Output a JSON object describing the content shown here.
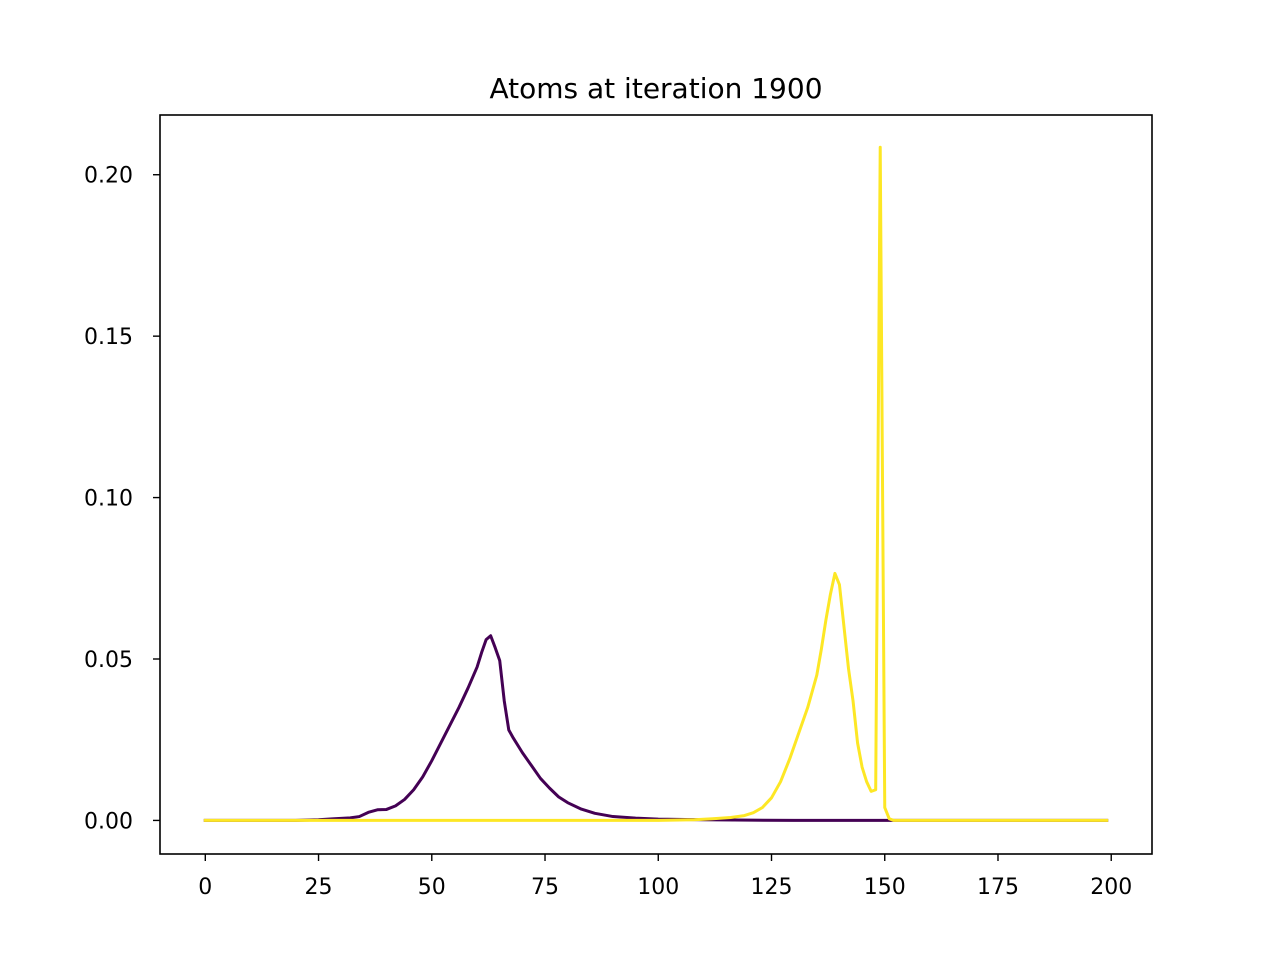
{
  "chart_data": {
    "type": "line",
    "title": "Atoms at iteration 1900",
    "xlabel": "",
    "ylabel": "",
    "xlim": [
      -10,
      209
    ],
    "ylim": [
      -0.0104,
      0.2185
    ],
    "xticks": [
      0,
      25,
      50,
      75,
      100,
      125,
      150,
      175,
      200
    ],
    "yticks": [
      0.0,
      0.05,
      0.1,
      0.15,
      0.2
    ],
    "ytick_labels": [
      "0.00",
      "0.05",
      "0.10",
      "0.15",
      "0.20"
    ],
    "grid": false,
    "legend": "none",
    "series": [
      {
        "color": "#440154",
        "points": [
          [
            0,
            0.0
          ],
          [
            20,
            0.0
          ],
          [
            25,
            0.0002
          ],
          [
            28,
            0.0005
          ],
          [
            32,
            0.0008
          ],
          [
            34,
            0.0012
          ],
          [
            36,
            0.0025
          ],
          [
            38,
            0.0033
          ],
          [
            40,
            0.0034
          ],
          [
            42,
            0.0045
          ],
          [
            44,
            0.0065
          ],
          [
            46,
            0.0095
          ],
          [
            48,
            0.0135
          ],
          [
            50,
            0.0185
          ],
          [
            52,
            0.024
          ],
          [
            54,
            0.0295
          ],
          [
            56,
            0.035
          ],
          [
            58,
            0.041
          ],
          [
            60,
            0.0475
          ],
          [
            61,
            0.052
          ],
          [
            62,
            0.056
          ],
          [
            63,
            0.0572
          ],
          [
            64,
            0.0535
          ],
          [
            65,
            0.0495
          ],
          [
            66,
            0.037
          ],
          [
            67,
            0.028
          ],
          [
            68,
            0.0255
          ],
          [
            70,
            0.021
          ],
          [
            72,
            0.017
          ],
          [
            74,
            0.013
          ],
          [
            76,
            0.01
          ],
          [
            78,
            0.0073
          ],
          [
            80,
            0.0055
          ],
          [
            83,
            0.0035
          ],
          [
            86,
            0.0022
          ],
          [
            90,
            0.0012
          ],
          [
            95,
            0.0007
          ],
          [
            100,
            0.0004
          ],
          [
            110,
            0.0002
          ],
          [
            120,
            0.0001
          ],
          [
            130,
            0.0
          ],
          [
            150,
            0.0
          ],
          [
            199,
            0.0
          ]
        ]
      },
      {
        "color": "#fde725",
        "points": [
          [
            0,
            0.0
          ],
          [
            100,
            0.0
          ],
          [
            108,
            0.0002
          ],
          [
            112,
            0.0005
          ],
          [
            116,
            0.0009
          ],
          [
            119,
            0.0015
          ],
          [
            121,
            0.0024
          ],
          [
            123,
            0.004
          ],
          [
            125,
            0.007
          ],
          [
            127,
            0.012
          ],
          [
            129,
            0.019
          ],
          [
            131,
            0.027
          ],
          [
            133,
            0.035
          ],
          [
            135,
            0.045
          ],
          [
            136,
            0.053
          ],
          [
            137,
            0.062
          ],
          [
            138,
            0.07
          ],
          [
            139,
            0.0765
          ],
          [
            140,
            0.073
          ],
          [
            141,
            0.06
          ],
          [
            142,
            0.047
          ],
          [
            143,
            0.037
          ],
          [
            144,
            0.024
          ],
          [
            145,
            0.0165
          ],
          [
            146,
            0.012
          ],
          [
            147,
            0.009
          ],
          [
            148,
            0.0095
          ],
          [
            149,
            0.2085
          ],
          [
            150,
            0.004
          ],
          [
            151,
            0.0005
          ],
          [
            152,
            0.0
          ],
          [
            199,
            0.0
          ]
        ]
      }
    ]
  }
}
